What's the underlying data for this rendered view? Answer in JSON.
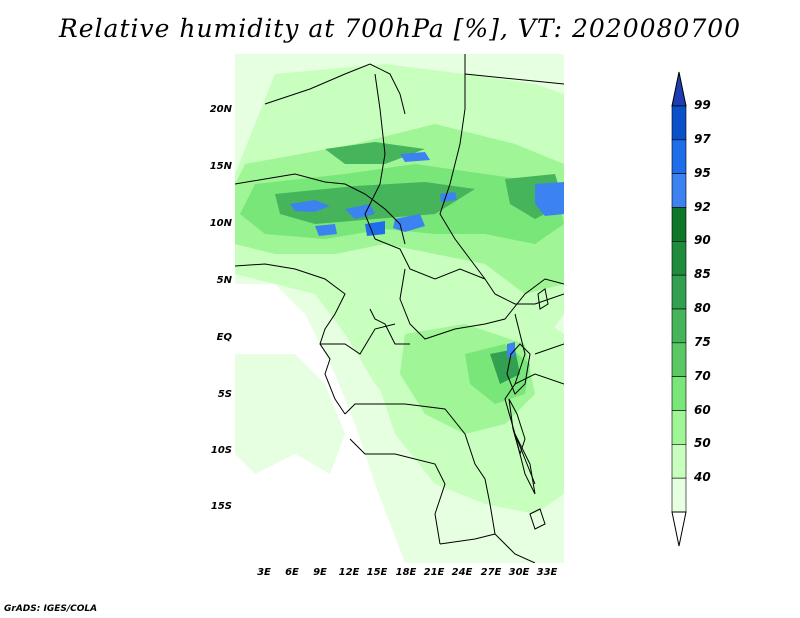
{
  "title": "Relative humidity at 700hPa [%], VT: 2020080700",
  "credit": "GrADS: IGES/COLA",
  "lat_labels": [
    "20N",
    "15N",
    "10N",
    "5N",
    "EQ",
    "5S",
    "10S",
    "15S"
  ],
  "lon_labels": [
    "3E",
    "6E",
    "9E",
    "12E",
    "15E",
    "18E",
    "21E",
    "24E",
    "27E",
    "30E",
    "33E"
  ],
  "colorbar": {
    "labels": [
      "40",
      "50",
      "60",
      "70",
      "75",
      "80",
      "85",
      "90",
      "92",
      "95",
      "97",
      "99"
    ],
    "colors": [
      "#ffffff",
      "#e6ffe1",
      "#c8ffbe",
      "#a0f596",
      "#78e678",
      "#5ac864",
      "#46b45a",
      "#32a050",
      "#1e8c3c",
      "#0f7828",
      "#3c82f0",
      "#1e6eeb",
      "#0a50c8",
      "#1e3cb4"
    ]
  }
}
